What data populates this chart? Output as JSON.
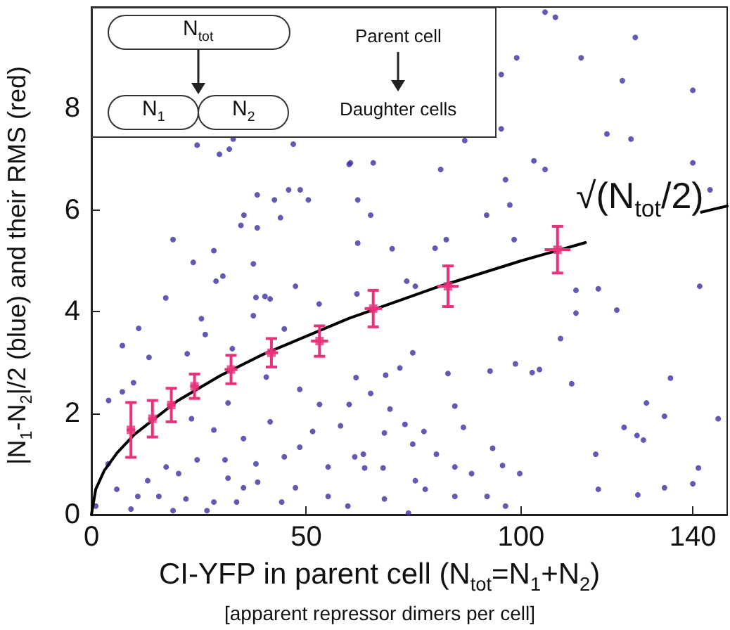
{
  "chart_data": {
    "type": "scatter",
    "xlabel": "CI-YFP in parent cell (N$_{tot}$=N$_{1}$+N$_{2}$)\n[apparent repressor dimers per cell]",
    "ylabel": "|N$_{1}$-N$_{2}$|/2 (blue) and their RMS (red)",
    "xlim": [
      0,
      148
    ],
    "xticks": [
      0,
      50,
      100,
      140
    ],
    "ylim": [
      0,
      10
    ],
    "yticks": [
      0,
      2,
      4,
      6,
      8
    ],
    "grid": false,
    "annotations": [
      "N$_{tot}$",
      "N$_{1}$",
      "N$_{2}$",
      "Parent cell",
      "Daughter cells",
      "√(N$_{tot}$/2)"
    ],
    "series": [
      {
        "color": "#3a2fa0",
        "marker": "circle",
        "x": [
          24.6,
          29.8,
          32.1,
          33,
          47,
          60,
          38.6,
          42.6,
          45.9,
          48.6,
          50.5,
          35.5,
          44,
          38.6,
          34.8,
          19,
          28.5,
          23.7,
          37.7,
          29,
          30.6,
          17.3,
          38.3,
          40.4,
          47.5,
          53,
          61.8,
          105.6,
          108,
          126.6,
          99,
          114,
          123.6,
          140,
          95.4,
          95.4,
          86.9,
          120,
          125.6,
          60.3,
          65.6,
          81.3,
          103,
          105.6,
          96.4,
          140,
          144,
          62,
          65,
          92,
          97.4,
          62,
          70,
          80,
          82.6,
          98.4,
          73.4,
          75.4,
          112.8,
          118,
          141.6,
          122.3,
          112.8,
          7.2,
          11,
          7.2,
          4,
          9.8,
          13.4,
          25.6,
          26.5,
          22.3,
          37.7,
          41.6,
          44.9,
          32.8,
          40.7,
          31.8,
          23.3,
          28.5,
          35.4,
          41.6,
          48.5,
          53.1,
          51.5,
          58,
          48.5,
          44.9,
          38.3,
          31.1,
          24.6,
          20.3,
          17.4,
          13.1,
          10.8,
          5.9,
          3.9,
          15.7,
          22,
          26.9,
          28.5,
          33.8,
          38.7,
          44.3,
          47.5,
          55.1,
          59.7,
          55.1,
          61.3,
          1,
          9.2,
          19,
          35.4,
          31.8,
          61.6,
          68.5,
          74.8,
          71.8,
          83,
          92.8,
          98.7,
          102.6,
          104.3,
          111.8,
          109.2,
          134.8,
          129.2,
          133.4,
          145.9,
          124,
          127,
          128.5,
          65,
          60,
          69.5,
          73,
          77.4,
          84.6,
          86.6,
          80.3,
          74.8,
          68.2,
          63.3,
          67.9,
          63.6,
          84.6,
          93.4,
          95.7,
          99.7,
          88.5,
          75.4,
          77.7,
          68.2,
          84.6,
          92.1,
          96.4,
          117.4,
          118,
          127.2,
          133.4,
          140,
          141.3,
          73.8
        ],
        "values": [
          7.28,
          7.1,
          7.2,
          7.4,
          7.3,
          6.9,
          6.3,
          6.2,
          6.4,
          6.4,
          6.2,
          5.9,
          5.85,
          5.65,
          5.7,
          5.42,
          5.2,
          4.97,
          4.94,
          4.6,
          4.7,
          4.27,
          4.28,
          4.3,
          4.5,
          4.15,
          4.35,
          9.9,
          9.8,
          9.4,
          9,
          9,
          8.55,
          8.36,
          8.67,
          7.6,
          7.37,
          7.5,
          7.4,
          6.93,
          6.93,
          6.8,
          6.97,
          6.8,
          6.6,
          6.93,
          6.4,
          6.2,
          5.9,
          5.9,
          6.1,
          5.35,
          5.24,
          5.25,
          5.42,
          5.42,
          4.6,
          4.5,
          4.42,
          4.45,
          4.5,
          4.03,
          3.97,
          3.33,
          3.67,
          2.42,
          2.25,
          2.6,
          3.1,
          3.86,
          3.55,
          3.17,
          3.92,
          4.25,
          3.66,
          3.27,
          2.71,
          2.2,
          1.89,
          1.67,
          1.5,
          1.83,
          2.47,
          2.17,
          1.64,
          1.75,
          1.33,
          1.14,
          1,
          1.08,
          1.08,
          0.81,
          0.94,
          0.67,
          0.36,
          0.5,
          1,
          0.36,
          0.31,
          0.08,
          0.25,
          0.25,
          0.64,
          0.25,
          0.53,
          0.36,
          0.17,
          0.94,
          1.14,
          0.17,
          0.11,
          0.08,
          0.53,
          0.72,
          2.7,
          2.75,
          3.19,
          2.89,
          2.78,
          2.83,
          2.97,
          2.8,
          2.86,
          2.58,
          3.47,
          2.69,
          2.2,
          1.94,
          1.89,
          1.72,
          1.56,
          1.47,
          2.39,
          2.17,
          2.08,
          1.78,
          1.64,
          2.14,
          1.72,
          1.19,
          1.39,
          1.61,
          1.19,
          0.92,
          0.92,
          0.94,
          1.31,
          0.97,
          0.81,
          0.81,
          0.67,
          0.5,
          0.31,
          0.36,
          0.36,
          0.17,
          1.19,
          0.5,
          0.39,
          0.53,
          0.61,
          0.92,
          0.03
        ]
      },
      {
        "type": "line",
        "color": "#000000",
        "marker": "none",
        "line_style": "solid",
        "x": [
          0,
          1,
          3,
          6,
          10,
          20,
          30,
          40,
          60,
          80,
          100,
          115,
          137,
          142,
          148
        ],
        "values": [
          0,
          0.5,
          0.87,
          1.22,
          1.58,
          2.24,
          2.74,
          3.16,
          3.87,
          4.47,
          5,
          5.36,
          null,
          5.96,
          6.08
        ]
      },
      {
        "color": "#e8327c",
        "marker": "square",
        "x": [
          9.2,
          14.2,
          18.6,
          24,
          32.5,
          41.9,
          53.1,
          65.6,
          83,
          108.5
        ],
        "values": [
          1.67,
          1.89,
          2.16,
          2.53,
          2.86,
          3.19,
          3.42,
          4.06,
          4.5,
          5.22
        ],
        "errors": [
          0.54,
          0.36,
          0.33,
          0.24,
          0.28,
          0.28,
          0.3,
          0.36,
          0.4,
          0.46
        ],
        "xerrors": [
          1,
          1,
          1,
          1,
          1.5,
          1.5,
          2,
          2,
          2.5,
          3
        ]
      }
    ]
  }
}
